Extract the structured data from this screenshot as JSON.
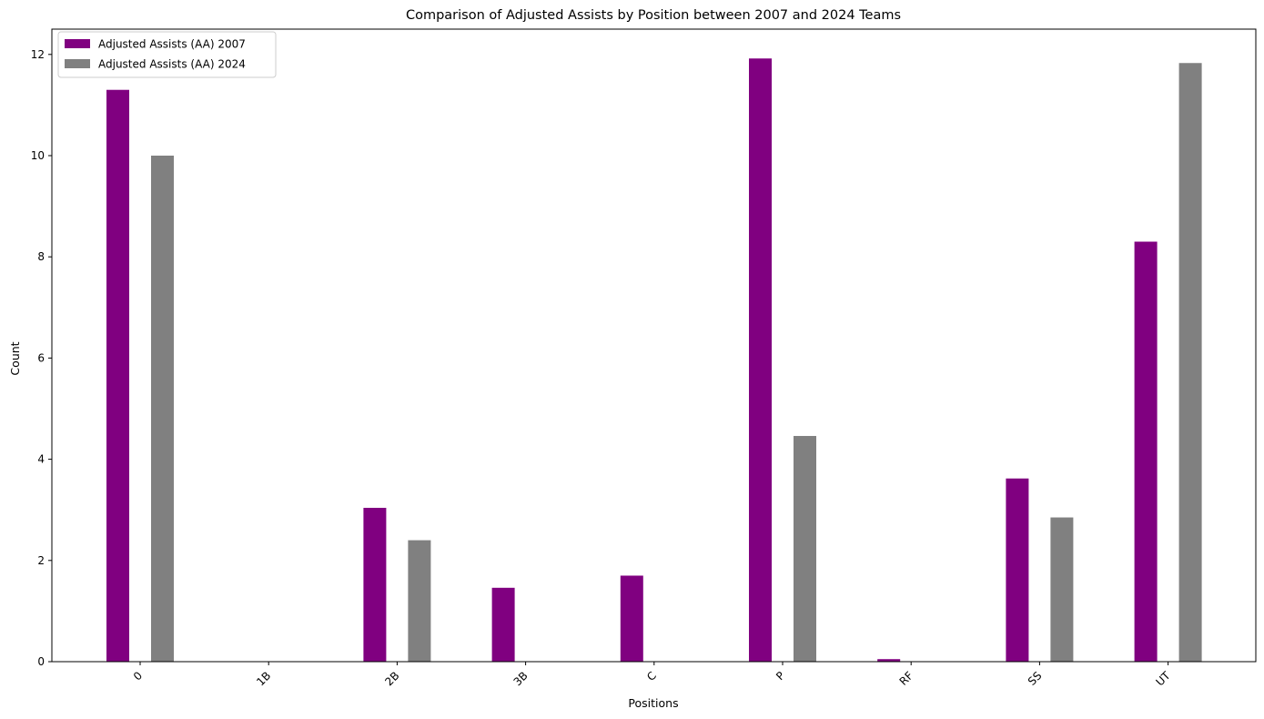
{
  "chart_data": {
    "type": "bar",
    "title": "Comparison of Adjusted Assists by Position between 2007 and 2024 Teams",
    "xlabel": "Positions",
    "ylabel": "Count",
    "categories": [
      "0",
      "1B",
      "2B",
      "3B",
      "C",
      "P",
      "RF",
      "SS",
      "UT"
    ],
    "series": [
      {
        "name": "Adjusted Assists (AA) 2007",
        "color": "#800080",
        "values": [
          11.3,
          0,
          3.04,
          1.46,
          1.7,
          11.92,
          0.05,
          3.62,
          8.3
        ]
      },
      {
        "name": "Adjusted Assists (AA) 2024",
        "color": "#808080",
        "values": [
          10.0,
          0,
          2.4,
          0,
          0,
          4.46,
          0,
          2.85,
          11.83
        ]
      }
    ],
    "ylim": [
      0,
      12.5
    ],
    "yticks": [
      0,
      2,
      4,
      6,
      8,
      10,
      12
    ],
    "legend_position": "top-left",
    "grid": false
  }
}
